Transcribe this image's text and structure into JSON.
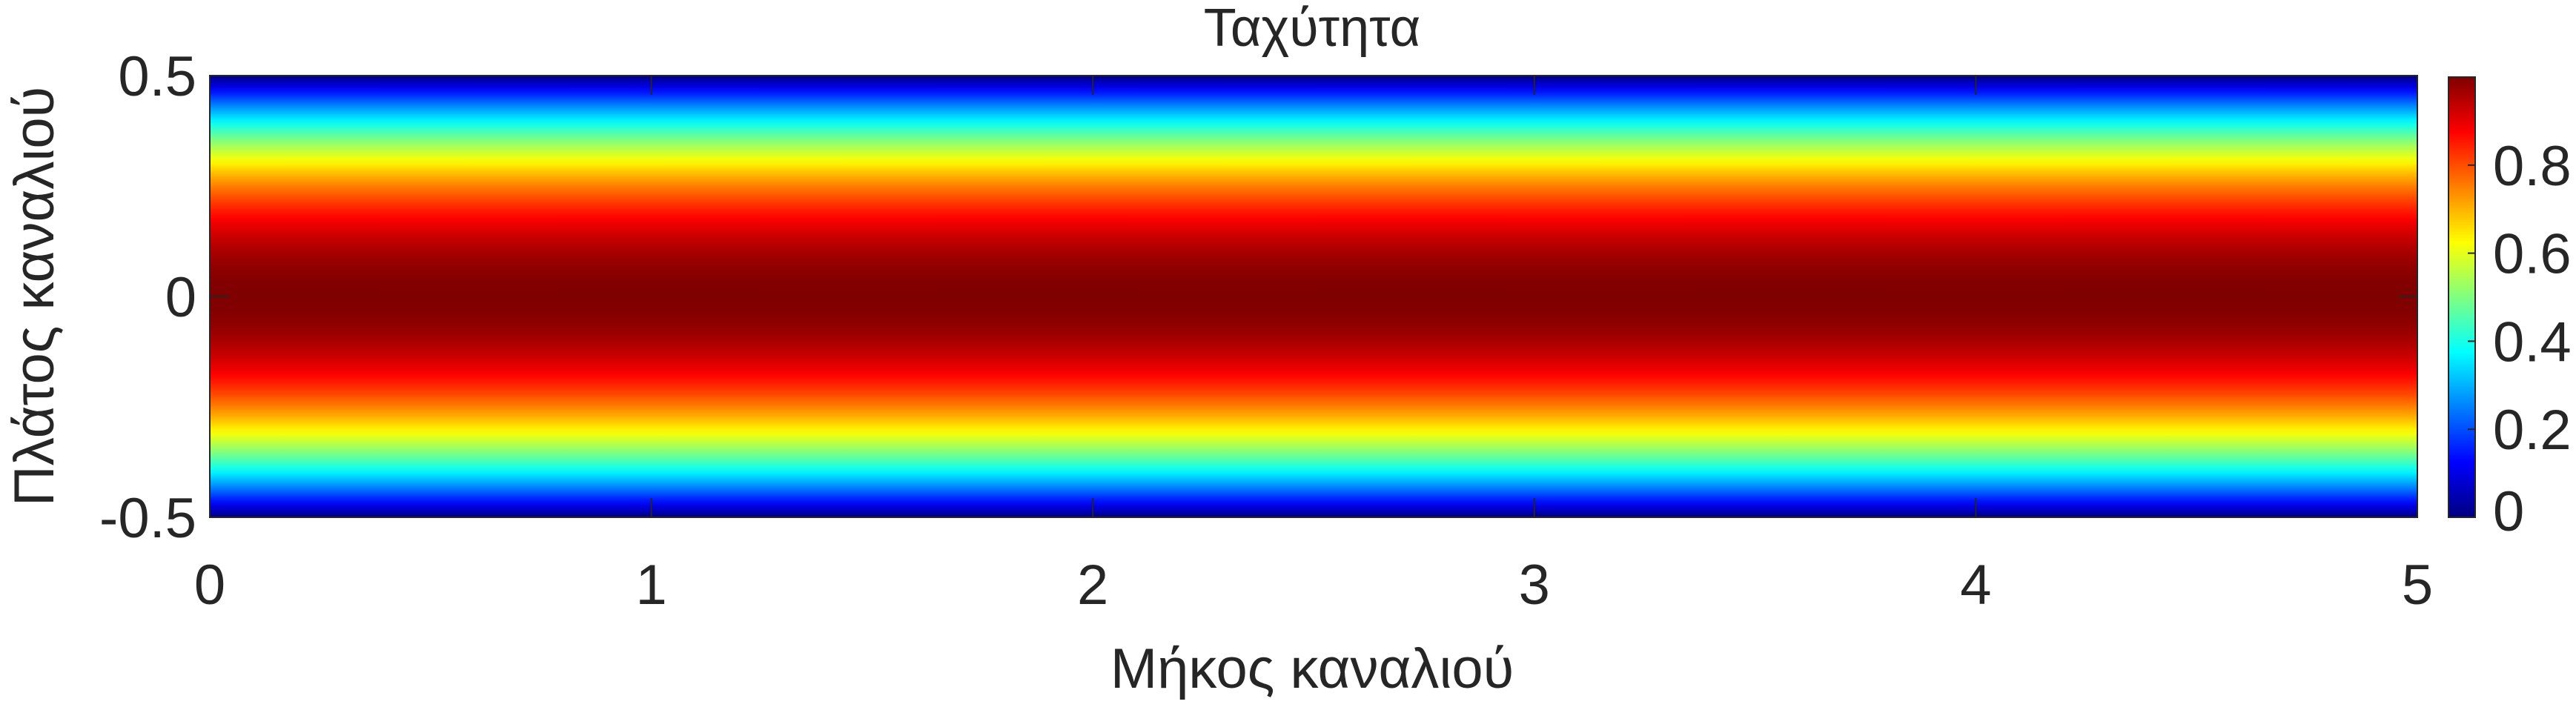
{
  "chart_data": {
    "type": "heatmap",
    "title": "Ταχύτητα",
    "xlabel": "Μήκος καναλιού",
    "ylabel": "Πλάτος καναλιού",
    "xlim": [
      0,
      5
    ],
    "ylim": [
      -0.5,
      0.5
    ],
    "x_ticks": [
      0,
      1,
      2,
      3,
      4,
      5
    ],
    "x_tick_labels": [
      "0",
      "1",
      "2",
      "3",
      "4",
      "5"
    ],
    "y_ticks": [
      -0.5,
      0,
      0.5
    ],
    "y_tick_labels": [
      "-0.5",
      "0",
      "0.5"
    ],
    "colormap": "jet",
    "clim": [
      0,
      1
    ],
    "field": "u(y) = 1 - 4y^2",
    "colorbar": {
      "ticks": [
        0,
        0.2,
        0.4,
        0.6,
        0.8
      ],
      "tick_labels": [
        "0",
        "0.2",
        "0.4",
        "0.6",
        "0.8"
      ],
      "placement": "right"
    }
  }
}
